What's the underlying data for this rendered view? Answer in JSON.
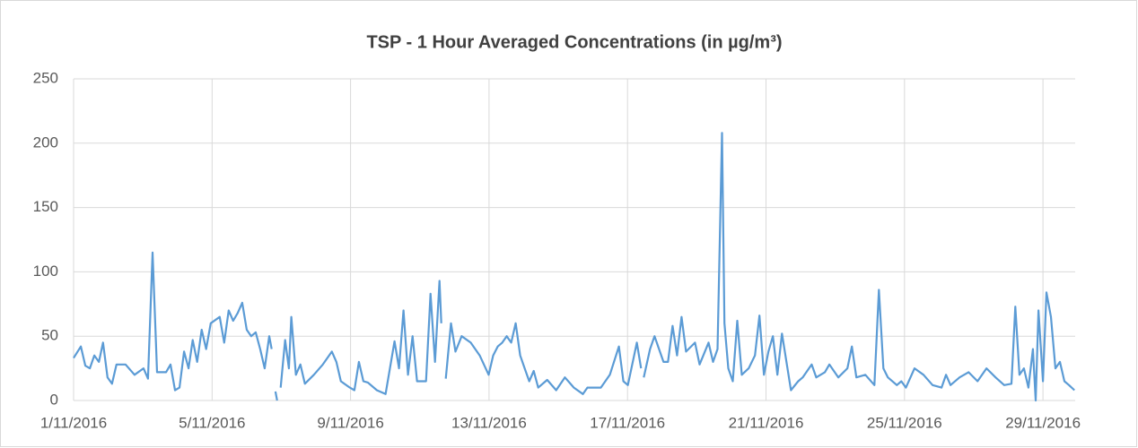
{
  "chart_data": {
    "type": "line",
    "title": "TSP - 1 Hour Averaged Concentrations (in µg/m³)",
    "x": [
      1.0,
      1.21,
      1.34,
      1.47,
      1.6,
      1.73,
      1.85,
      1.98,
      2.11,
      2.24,
      2.5,
      2.76,
      3.02,
      3.15,
      3.28,
      3.41,
      3.67,
      3.8,
      3.93,
      4.06,
      4.19,
      4.32,
      4.44,
      4.57,
      4.7,
      4.83,
      4.96,
      5.22,
      5.35,
      5.48,
      5.61,
      5.74,
      5.87,
      6.0,
      6.13,
      6.26,
      6.39,
      6.52,
      6.65,
      6.72,
      6.78,
      6.83,
      6.88,
      6.93,
      6.98,
      7.11,
      7.22,
      7.29,
      7.42,
      7.55,
      7.68,
      7.94,
      8.2,
      8.46,
      8.59,
      8.72,
      8.98,
      9.11,
      9.24,
      9.37,
      9.5,
      9.76,
      10.01,
      10.27,
      10.4,
      10.53,
      10.66,
      10.79,
      10.92,
      11.18,
      11.31,
      11.44,
      11.57,
      11.62,
      11.69,
      11.75,
      11.9,
      12.03,
      12.21,
      12.47,
      12.73,
      12.99,
      13.12,
      13.25,
      13.38,
      13.51,
      13.64,
      13.77,
      13.9,
      14.03,
      14.16,
      14.29,
      14.42,
      14.68,
      14.94,
      15.19,
      15.45,
      15.71,
      15.84,
      16.23,
      16.49,
      16.75,
      16.88,
      17.01,
      17.27,
      17.39,
      17.43,
      17.47,
      17.65,
      17.78,
      18.04,
      18.17,
      18.3,
      18.43,
      18.56,
      18.69,
      18.95,
      19.08,
      19.34,
      19.47,
      19.6,
      19.73,
      19.8,
      19.91,
      20.04,
      20.17,
      20.3,
      20.5,
      20.68,
      20.81,
      20.94,
      21.07,
      21.2,
      21.33,
      21.46,
      21.59,
      21.72,
      21.93,
      22.06,
      22.32,
      22.45,
      22.7,
      22.83,
      23.09,
      23.35,
      23.48,
      23.61,
      23.87,
      24.13,
      24.26,
      24.39,
      24.52,
      24.78,
      24.91,
      25.04,
      25.29,
      25.55,
      25.81,
      26.07,
      26.2,
      26.33,
      26.59,
      26.85,
      27.11,
      27.37,
      27.63,
      27.88,
      28.09,
      28.2,
      28.32,
      28.45,
      28.58,
      28.71,
      28.79,
      28.87,
      29.0,
      29.1,
      29.23,
      29.36,
      29.49,
      29.62,
      29.75,
      29.91
    ],
    "series": [
      {
        "name": "TSP",
        "color": "#5b9bd5",
        "values": [
          33,
          42,
          27,
          25,
          35,
          30,
          45,
          18,
          13,
          28,
          28,
          20,
          25,
          17,
          115,
          22,
          22,
          28,
          8,
          10,
          38,
          25,
          47,
          30,
          55,
          40,
          60,
          65,
          45,
          70,
          62,
          68,
          76,
          55,
          50,
          53,
          40,
          25,
          50,
          40,
          null,
          7,
          0,
          null,
          10,
          47,
          25,
          65,
          20,
          28,
          13,
          20,
          28,
          38,
          30,
          15,
          10,
          8,
          30,
          15,
          14,
          8,
          5,
          46,
          25,
          70,
          20,
          50,
          15,
          15,
          83,
          30,
          93,
          60,
          null,
          17,
          60,
          38,
          50,
          45,
          35,
          20,
          35,
          42,
          45,
          50,
          45,
          60,
          35,
          25,
          15,
          23,
          10,
          16,
          8,
          18,
          10,
          5,
          10,
          10,
          20,
          42,
          15,
          12,
          45,
          25,
          null,
          18,
          40,
          50,
          30,
          30,
          58,
          35,
          65,
          38,
          45,
          28,
          45,
          30,
          40,
          208,
          60,
          25,
          15,
          62,
          20,
          25,
          35,
          66,
          20,
          38,
          50,
          20,
          52,
          30,
          8,
          15,
          18,
          28,
          18,
          22,
          28,
          18,
          25,
          42,
          18,
          20,
          12,
          86,
          25,
          18,
          12,
          15,
          10,
          25,
          20,
          12,
          10,
          20,
          12,
          18,
          22,
          15,
          25,
          18,
          12,
          13,
          73,
          20,
          25,
          10,
          40,
          0,
          70,
          15,
          84,
          65,
          25,
          30,
          15,
          12,
          8
        ]
      }
    ],
    "xlim": [
      1,
      29.93
    ],
    "xticks": [
      {
        "value": 1,
        "label": "1/11/2016"
      },
      {
        "value": 5,
        "label": "5/11/2016"
      },
      {
        "value": 9,
        "label": "9/11/2016"
      },
      {
        "value": 13,
        "label": "13/11/2016"
      },
      {
        "value": 17,
        "label": "17/11/2016"
      },
      {
        "value": 21,
        "label": "21/11/2016"
      },
      {
        "value": 25,
        "label": "25/11/2016"
      },
      {
        "value": 29,
        "label": "29/11/2016"
      }
    ],
    "ylim": [
      0,
      250
    ],
    "yticks": [
      0,
      50,
      100,
      150,
      200,
      250
    ],
    "grid": true
  }
}
